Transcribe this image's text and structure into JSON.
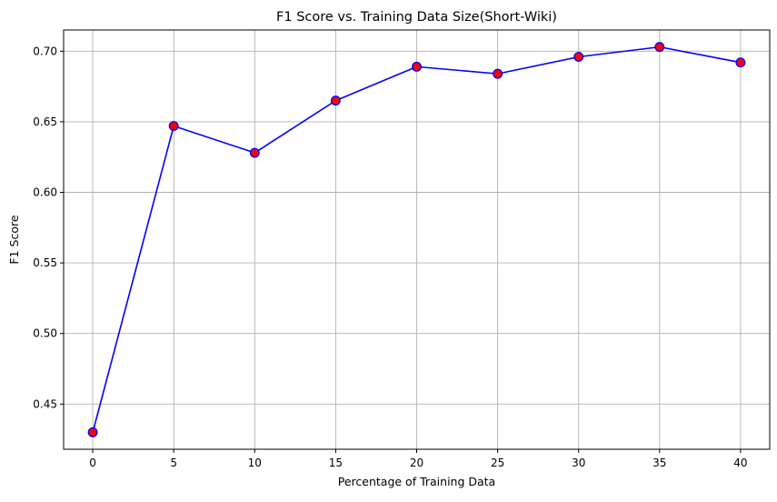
{
  "chart_data": {
    "type": "line",
    "title": "F1 Score vs. Training Data Size(Short-Wiki)",
    "xlabel": "Percentage of Training Data",
    "ylabel": "F1 Score",
    "x": [
      0,
      5,
      10,
      15,
      20,
      25,
      30,
      35,
      40
    ],
    "series": [
      {
        "values": [
          0.43,
          0.647,
          0.628,
          0.665,
          0.689,
          0.684,
          0.696,
          0.703,
          0.692
        ]
      }
    ],
    "xlim": [
      -1.8,
      41.8
    ],
    "ylim": [
      0.418,
      0.715
    ],
    "xticks": [
      "0",
      "5",
      "10",
      "15",
      "20",
      "25",
      "30",
      "35",
      "40"
    ],
    "yticks": [
      "0.45",
      "0.50",
      "0.55",
      "0.60",
      "0.65",
      "0.70"
    ],
    "grid": true,
    "colors": {
      "line": "#0000ff",
      "marker_fill": "#ff0000",
      "marker_edge": "#0000ff",
      "grid": "#b0b0b0"
    }
  }
}
